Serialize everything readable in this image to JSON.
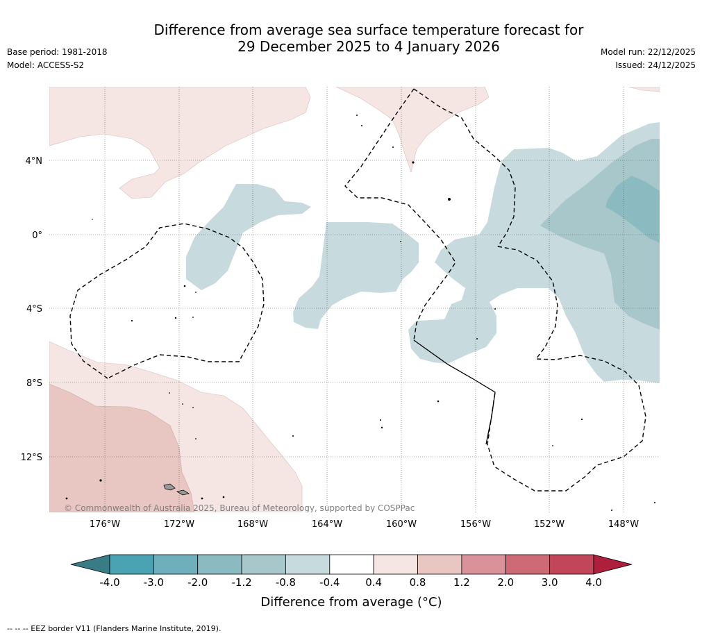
{
  "title": {
    "line1": "Difference from average sea surface temperature forecast for",
    "line2": "29 December 2025 to 4 January 2026"
  },
  "meta_left": {
    "base_period": "Base period: 1981-2018",
    "model": "Model: ACCESS-S2"
  },
  "meta_right": {
    "model_run": "Model run: 22/12/2025",
    "issued": "Issued: 24/12/2025"
  },
  "map": {
    "lat_labels": [
      "4°N",
      "0°",
      "4°S",
      "8°S",
      "12°S"
    ],
    "lon_labels": [
      "176°W",
      "172°W",
      "168°W",
      "164°W",
      "160°W",
      "156°W",
      "152°W",
      "148°W"
    ],
    "credit": "© Commonwealth of Australia 2025, Bureau of Meteorology, supported by COSPPac",
    "regions": [
      {
        "name": "warm-anomaly-northwest",
        "category": "0.4 to 0.8"
      },
      {
        "name": "warm-anomaly-north",
        "category": "0.4 to 0.8"
      },
      {
        "name": "warm-anomaly-southwest",
        "category": "0.4 to 0.8"
      },
      {
        "name": "warm-anomaly-southwest-core",
        "category": "0.8 to 1.2"
      },
      {
        "name": "cool-anomaly-east",
        "category": "-0.8 to -0.4"
      },
      {
        "name": "cool-anomaly-east-core",
        "category": "-1.2 to -0.8"
      },
      {
        "name": "cool-anomaly-east-inner",
        "category": "-2.0 to -1.2"
      }
    ]
  },
  "colorbar": {
    "ticks": [
      "-4.0",
      "-3.0",
      "-2.0",
      "-1.2",
      "-0.8",
      "-0.4",
      "0.4",
      "0.8",
      "1.2",
      "2.0",
      "3.0",
      "4.0"
    ],
    "colors": [
      "#4aa3b3",
      "#6eafbb",
      "#8cbac1",
      "#a8c7cb",
      "#c7dadd",
      "#ffffff",
      "#f5e6e4",
      "#e8c6c1",
      "#d9929a",
      "#cd6a76",
      "#c14659"
    ],
    "under_color": "#3a7c86",
    "over_color": "#ad1f3d",
    "title": "Difference from average (°C)"
  },
  "footer": "-- -- -- EEZ border V11 (Flanders Marine Institute, 2019)."
}
